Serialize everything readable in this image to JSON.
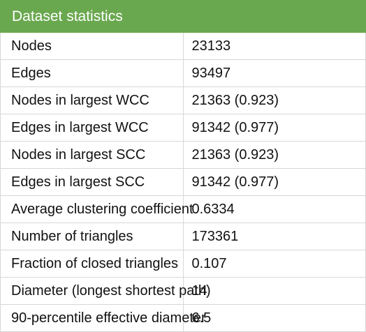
{
  "table": {
    "title": "Dataset statistics",
    "rows": [
      {
        "label": "Nodes",
        "value": "23133"
      },
      {
        "label": "Edges",
        "value": "93497"
      },
      {
        "label": "Nodes in largest WCC",
        "value": "21363 (0.923)"
      },
      {
        "label": "Edges in largest WCC",
        "value": "91342 (0.977)"
      },
      {
        "label": "Nodes in largest SCC",
        "value": "21363 (0.923)"
      },
      {
        "label": "Edges in largest SCC",
        "value": "91342 (0.977)"
      },
      {
        "label": "Average clustering coefficient",
        "value": "0.6334"
      },
      {
        "label": "Number of triangles",
        "value": "173361"
      },
      {
        "label": "Fraction of closed triangles",
        "value": "0.107"
      },
      {
        "label": "Diameter (longest shortest path)",
        "value": "14"
      },
      {
        "label": "90-percentile effective diameter",
        "value": "6.5"
      }
    ]
  },
  "colors": {
    "header_background": "#6aa84f",
    "header_text": "#ffffff",
    "border": "#d7d7d7"
  }
}
